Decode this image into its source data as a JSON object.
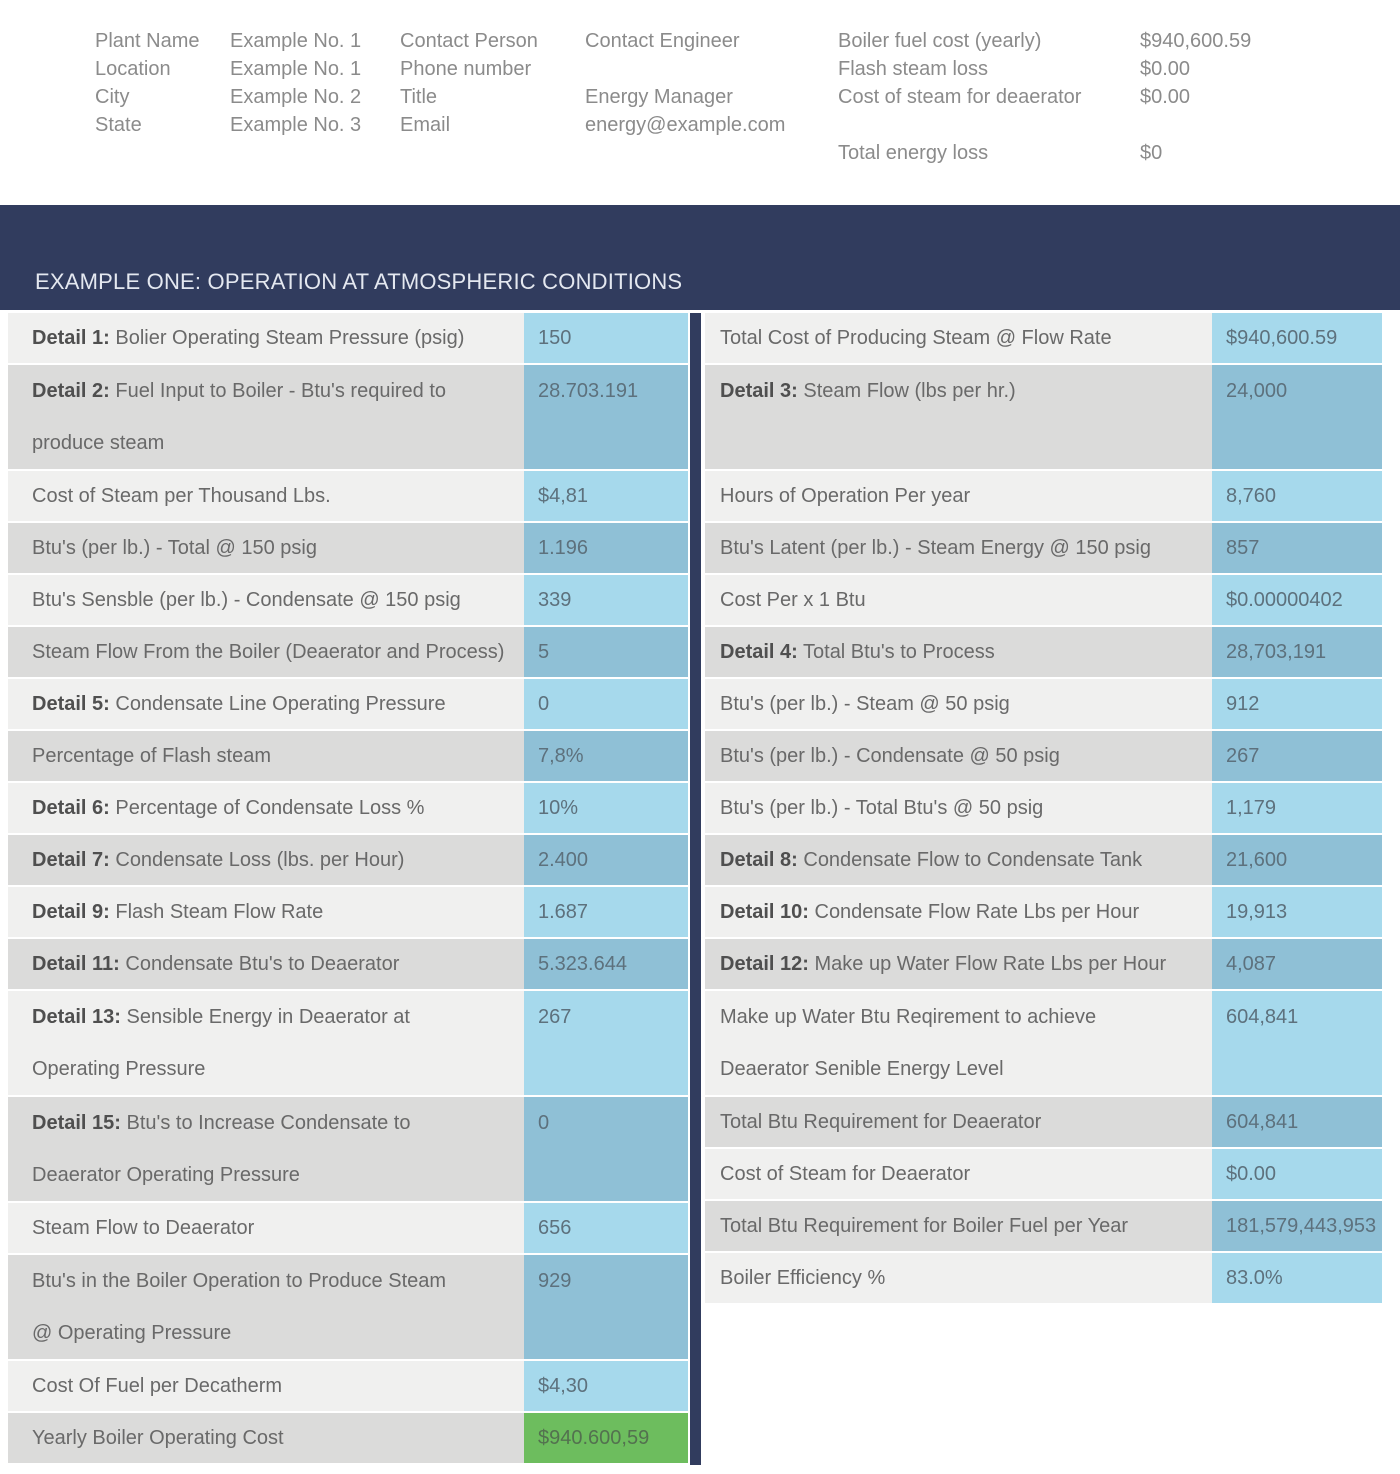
{
  "header": {
    "groups": [
      {
        "lines": [
          {
            "label": "Plant Name",
            "value": "Example No. 1"
          },
          {
            "label": "Location",
            "value": "Example No. 1"
          },
          {
            "label": "City",
            "value": "Example No. 2"
          },
          {
            "label": "State",
            "value": "Example No. 3"
          }
        ]
      },
      {
        "lines": [
          {
            "label": "Contact Person",
            "value": "Contact Engineer"
          },
          {
            "label": "Phone number",
            "value": ""
          },
          {
            "label": "Title",
            "value": "Energy Manager"
          },
          {
            "label": "Email",
            "value": "energy@example.com"
          }
        ]
      },
      {
        "lines": [
          {
            "label": "Boiler fuel cost (yearly)",
            "value": "$940,600.59"
          },
          {
            "label": "Flash steam loss",
            "value": "$0.00"
          },
          {
            "label": "Cost of steam for deaerator",
            "value": "$0.00"
          },
          {
            "label": "",
            "value": ""
          },
          {
            "label": "Total energy loss",
            "value": "$0"
          }
        ]
      }
    ]
  },
  "banner": {
    "title": "EXAMPLE ONE: OPERATION AT ATMOSPHERIC CONDITIONS"
  },
  "left_rows": [
    {
      "bold": "Detail 1:",
      "label": " Bolier Operating Steam Pressure (psig)",
      "label2": "",
      "value": "150"
    },
    {
      "bold": "Detail 2:",
      "label": " Fuel Input to Boiler - Btu's required to",
      "label2": "produce steam",
      "value": "28.703.191"
    },
    {
      "bold": "",
      "label": "Cost of Steam per Thousand Lbs.",
      "label2": "",
      "value": "$4,81"
    },
    {
      "bold": "",
      "label": "Btu's (per lb.) - Total @ 150 psig",
      "label2": "",
      "value": "1.196"
    },
    {
      "bold": "",
      "label": "Btu's Sensble (per lb.) - Condensate @ 150 psig",
      "label2": "",
      "value": "339"
    },
    {
      "bold": "",
      "label": "Steam Flow From the Boiler (Deaerator and Process)",
      "label2": "",
      "value": "5"
    },
    {
      "bold": "Detail 5:",
      "label": " Condensate Line Operating Pressure",
      "label2": "",
      "value": "0"
    },
    {
      "bold": "",
      "label": "Percentage of Flash steam",
      "label2": "",
      "value": "7,8%"
    },
    {
      "bold": "Detail 6:",
      "label": " Percentage of Condensate Loss %",
      "label2": "",
      "value": "10%"
    },
    {
      "bold": "Detail 7:",
      "label": " Condensate Loss (lbs. per Hour)",
      "label2": "",
      "value": "2.400"
    },
    {
      "bold": "Detail 9:",
      "label": " Flash Steam Flow Rate",
      "label2": "",
      "value": "1.687"
    },
    {
      "bold": "Detail 11:",
      "label": " Condensate Btu's to Deaerator",
      "label2": "",
      "value": "5.323.644"
    },
    {
      "bold": "Detail 13:",
      "label": " Sensible Energy in Deaerator at",
      "label2": "Operating Pressure",
      "value": "267"
    },
    {
      "bold": "Detail 15:",
      "label": " Btu's to Increase Condensate to",
      "label2": "Deaerator Operating Pressure",
      "value": "0"
    },
    {
      "bold": "",
      "label": "Steam Flow to Deaerator",
      "label2": "",
      "value": "656"
    },
    {
      "bold": "",
      "label": "Btu's in the Boiler Operation to Produce Steam",
      "label2": "@ Operating Pressure",
      "value": "929"
    },
    {
      "bold": "",
      "label": "Cost Of Fuel per Decatherm",
      "label2": "",
      "value": "$4,30"
    },
    {
      "bold": "",
      "label": "Yearly Boiler Operating Cost",
      "label2": "",
      "value": "$940.600,59"
    }
  ],
  "right_rows": [
    {
      "bold": "",
      "label": "Total Cost of Producing Steam @ Flow Rate",
      "label2": "",
      "value": "$940,600.59"
    },
    {
      "bold": "Detail 3:",
      "label": " Steam Flow (lbs per hr.)",
      "label2": "",
      "value": "24,000"
    },
    {
      "bold": "",
      "label": "Hours of Operation Per year",
      "label2": "",
      "value": "8,760"
    },
    {
      "bold": "",
      "label": "Btu's Latent (per lb.) - Steam Energy @ 150 psig",
      "label2": "",
      "value": "857"
    },
    {
      "bold": "",
      "label": "Cost Per x 1 Btu",
      "label2": "",
      "value": "$0.00000402"
    },
    {
      "bold": "Detail 4:",
      "label": " Total Btu's to Process",
      "label2": "",
      "value": "28,703,191"
    },
    {
      "bold": "",
      "label": "Btu's (per lb.) - Steam @ 50 psig",
      "label2": "",
      "value": "912"
    },
    {
      "bold": "",
      "label": "Btu's (per lb.) - Condensate @ 50 psig",
      "label2": "",
      "value": "267"
    },
    {
      "bold": "",
      "label": "Btu's (per lb.) - Total Btu's @ 50 psig",
      "label2": "",
      "value": "1,179"
    },
    {
      "bold": "Detail 8:",
      "label": " Condensate Flow to Condensate Tank",
      "label2": "",
      "value": "21,600"
    },
    {
      "bold": "Detail 10:",
      "label": " Condensate Flow Rate Lbs per Hour",
      "label2": "",
      "value": "19,913"
    },
    {
      "bold": "Detail 12:",
      "label": " Make up Water Flow Rate Lbs per Hour",
      "label2": "",
      "value": "4,087"
    },
    {
      "bold": "",
      "label": "Make up Water Btu Reqirement to achieve",
      "label2": "Deaerator Senible Energy Level",
      "value": "604,841"
    },
    {
      "bold": "",
      "label": "Total Btu Requirement for Deaerator",
      "label2": "",
      "value": "604,841"
    },
    {
      "bold": "",
      "label": "Cost of Steam for Deaerator",
      "label2": "",
      "value": "$0.00"
    },
    {
      "bold": "",
      "label": "Total Btu Requirement for Boiler Fuel per Year",
      "label2": "",
      "value": "181,579,443,953"
    },
    {
      "bold": "",
      "label": "Boiler Efficiency %",
      "label2": "",
      "value": "83.0%"
    }
  ],
  "colors": {
    "navy": "#313c5e",
    "row_light": "#f0f0ef",
    "row_dark": "#dbdbda",
    "value_blue_light": "#a6d9ec",
    "value_blue_dark": "#8fc0d6",
    "value_green": "#6dbd5e"
  }
}
